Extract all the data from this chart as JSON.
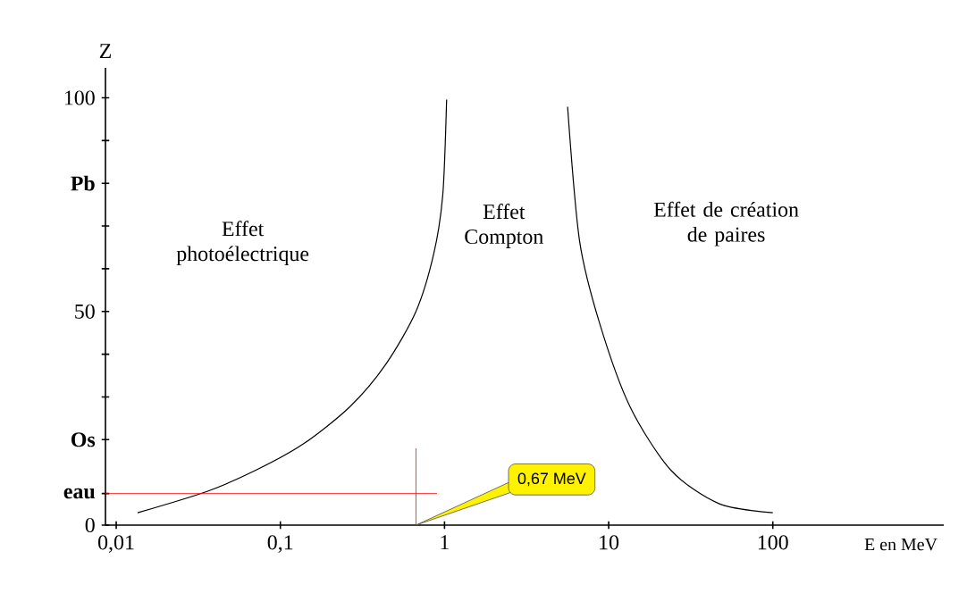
{
  "chart_data": {
    "type": "line",
    "xlabel": "E en MeV",
    "ylabel": "Z",
    "log": "x",
    "grid": false,
    "marker": "none",
    "line_style": "solid",
    "xlim": [
      0.0086,
      1100
    ],
    "ylim": [
      0,
      107
    ],
    "xticks": [
      {
        "value": 0.01,
        "label": "0,01"
      },
      {
        "value": 0.1,
        "label": "0,1"
      },
      1,
      10,
      100
    ],
    "yticks": [
      0,
      {
        "value": 7.4,
        "label": "eau"
      },
      {
        "value": 20,
        "label": "Os"
      },
      {
        "value": 30,
        "label": null
      },
      {
        "value": 40,
        "label": null
      },
      50,
      {
        "value": 60,
        "label": null
      },
      {
        "value": 70,
        "label": null
      },
      {
        "value": 80,
        "label": "Pb"
      },
      {
        "value": 90,
        "label": null
      },
      100
    ],
    "series": [
      {
        "color": "#000000",
        "x": [
          0.0135,
          0.0358,
          0.0704,
          0.138,
          0.265,
          0.438,
          0.67,
          0.861,
          0.976,
          1.03
        ],
        "values": [
          2.9,
          7.9,
          12.8,
          19,
          27.7,
          37.6,
          50,
          63.6,
          77.3,
          99.6
        ]
      },
      {
        "color": "#000000",
        "x": [
          5.62,
          6.65,
          8.83,
          13.5,
          24,
          47.2,
          100
        ],
        "values": [
          97.9,
          66.5,
          47.1,
          27.7,
          12.8,
          5,
          2.9
        ]
      }
    ],
    "ref_lines": [
      {
        "axis": "x",
        "value": 0.67,
        "label": "0,67 MeV",
        "color": "#ff0000"
      },
      {
        "axis": "y",
        "value": 7.4,
        "color": "#ff0000"
      }
    ],
    "annotations": [
      "Effet photoélectrique",
      "Effet Compton",
      "Effet de création de paires"
    ]
  }
}
